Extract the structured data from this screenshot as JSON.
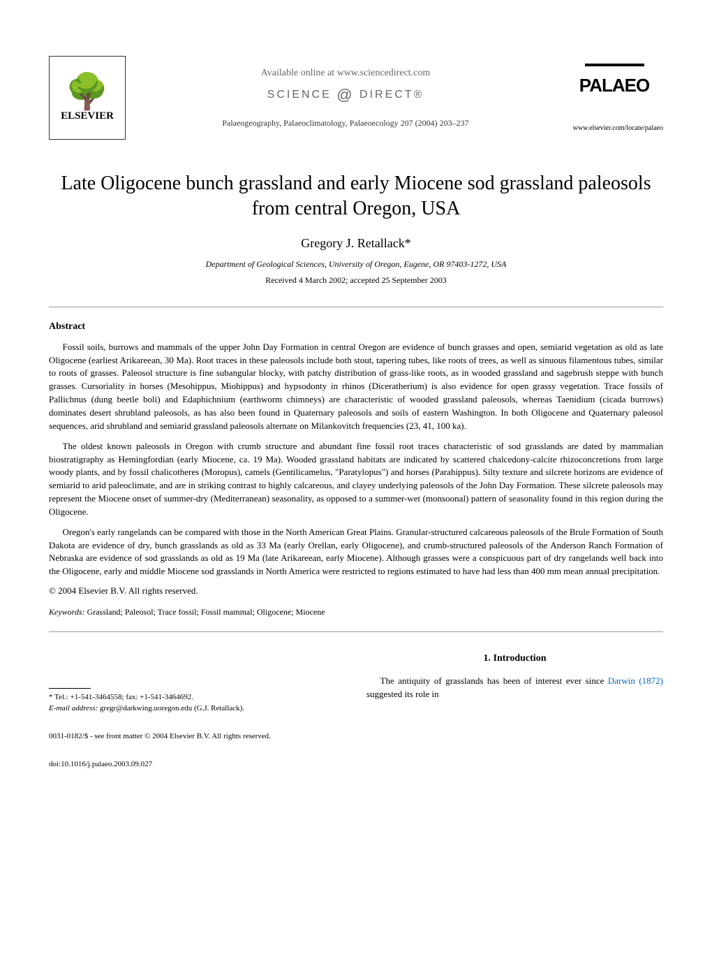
{
  "header": {
    "available_online": "Available online at www.sciencedirect.com",
    "science_direct_left": "SCIENCE",
    "science_direct_right": "DIRECT®",
    "journal_info": "Palaeogeography, Palaeoclimatology, Palaeoecology 207 (2004) 203–237",
    "elsevier_label": "ELSEVIER",
    "palaeo_label": "PALAEO",
    "journal_url": "www.elsevier.com/locate/palaeo"
  },
  "title": "Late Oligocene bunch grassland and early Miocene sod grassland paleosols from central Oregon, USA",
  "author": "Gregory J. Retallack*",
  "affiliation": "Department of Geological Sciences, University of Oregon, Eugene, OR 97403-1272, USA",
  "dates": "Received 4 March 2002; accepted 25 September 2003",
  "abstract_heading": "Abstract",
  "abstract_paragraphs": [
    "Fossil soils, burrows and mammals of the upper John Day Formation in central Oregon are evidence of bunch grasses and open, semiarid vegetation as old as late Oligocene (earliest Arikareean, 30 Ma). Root traces in these paleosols include both stout, tapering tubes, like roots of trees, as well as sinuous filamentous tubes, similar to roots of grasses. Paleosol structure is fine subangular blocky, with patchy distribution of grass-like roots, as in wooded grassland and sagebrush steppe with bunch grasses. Cursoriality in horses (Mesohippus, Miohippus) and hypsodonty in rhinos (Diceratherium) is also evidence for open grassy vegetation. Trace fossils of Pallichnus (dung beetle boli) and Edaphichnium (earthworm chimneys) are characteristic of wooded grassland paleosols, whereas Taenidium (cicada burrows) dominates desert shrubland paleosols, as has also been found in Quaternary paleosols and soils of eastern Washington. In both Oligocene and Quaternary paleosol sequences, arid shrubland and semiarid grassland paleosols alternate on Milankovitch frequencies (23, 41, 100 ka).",
    "The oldest known paleosols in Oregon with crumb structure and abundant fine fossil root traces characteristic of sod grasslands are dated by mammalian biostratigraphy as Hemingfordian (early Miocene, ca. 19 Ma). Wooded grassland habitats are indicated by scattered chalcedony-calcite rhizoconcretions from large woody plants, and by fossil chalicotheres (Moropus), camels (Gentilicamelus, \"Paratylopus\") and horses (Parahippus). Silty texture and silcrete horizons are evidence of semiarid to arid paleoclimate, and are in striking contrast to highly calcareous, and clayey underlying paleosols of the John Day Formation. These silcrete paleosols may represent the Miocene onset of summer-dry (Mediterranean) seasonality, as opposed to a summer-wet (monsoonal) pattern of seasonality found in this region during the Oligocene.",
    "Oregon's early rangelands can be compared with those in the North American Great Plains. Granular-structured calcareous paleosols of the Brule Formation of South Dakota are evidence of dry, bunch grasslands as old as 33 Ma (early Orellan, early Oligocene), and crumb-structured paleosols of the Anderson Ranch Formation of Nebraska are evidence of sod grasslands as old as 19 Ma (late Arikareean, early Miocene). Although grasses were a conspicuous part of dry rangelands well back into the Oligocene, early and middle Miocene sod grasslands in North America were restricted to regions estimated to have had less than 400 mm mean annual precipitation."
  ],
  "copyright": "© 2004 Elsevier B.V. All rights reserved.",
  "keywords_label": "Keywords:",
  "keywords_text": " Grassland; Paleosol; Trace fossil; Fossil mammal; Oligocene; Miocene",
  "section_intro_heading": "1. Introduction",
  "intro_text_prefix": "The antiquity of grasslands has been of interest ever since ",
  "intro_link": "Darwin (1872)",
  "intro_text_suffix": " suggested its role in",
  "footnote_tel": "* Tel.: +1-541-3464558; fax: +1-541-3464692.",
  "footnote_email_label": "E-mail address:",
  "footnote_email_value": " gregr@darkwing.uoregon.edu (G.J. Retallack).",
  "bottom_issn": "0031-0182/$ - see front matter © 2004 Elsevier B.V. All rights reserved.",
  "bottom_doi": "doi:10.1016/j.palaeo.2003.09.027"
}
